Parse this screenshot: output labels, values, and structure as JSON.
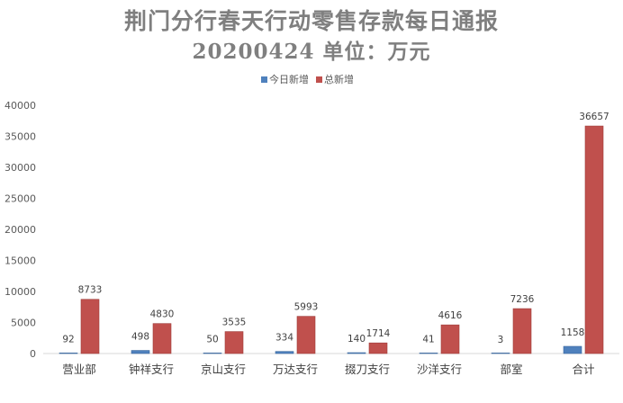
{
  "header": {
    "title": "荆门分行春天行动零售存款每日通报",
    "subtitle": "20200424   单位：万元"
  },
  "chart_data": {
    "type": "bar",
    "title": "荆门分行春天行动零售存款每日通报",
    "subtitle": "20200424   单位：万元",
    "categories": [
      "营业部",
      "钟祥支行",
      "京山支行",
      "万达支行",
      "掇刀支行",
      "沙洋支行",
      "部室",
      "合计"
    ],
    "series": [
      {
        "name": "今日新增",
        "color": "#4f81bd",
        "values": [
          92,
          498,
          50,
          334,
          140,
          41,
          3,
          1158
        ]
      },
      {
        "name": "总新增",
        "color": "#c0504d",
        "values": [
          8733,
          4830,
          3535,
          5993,
          1714,
          4616,
          7236,
          36657
        ]
      }
    ],
    "ylim": [
      0,
      40000
    ],
    "yticks": [
      0,
      5000,
      10000,
      15000,
      20000,
      25000,
      30000,
      35000,
      40000
    ],
    "xlabel": "",
    "ylabel": "",
    "legend": "top",
    "grid": false,
    "data_labels": true
  }
}
